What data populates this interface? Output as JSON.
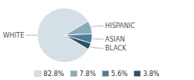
{
  "chart_data": {
    "type": "pie",
    "categories": [
      "WHITE",
      "HISPANIC",
      "ASIAN",
      "BLACK"
    ],
    "values": [
      82.8,
      7.8,
      5.6,
      3.8
    ],
    "value_labels": [
      "82.8%",
      "7.8%",
      "5.6%",
      "3.8%"
    ],
    "colors": [
      "#d4dfe6",
      "#8aaabb",
      "#4d7d96",
      "#2b4f66"
    ],
    "legend": "bottom"
  }
}
